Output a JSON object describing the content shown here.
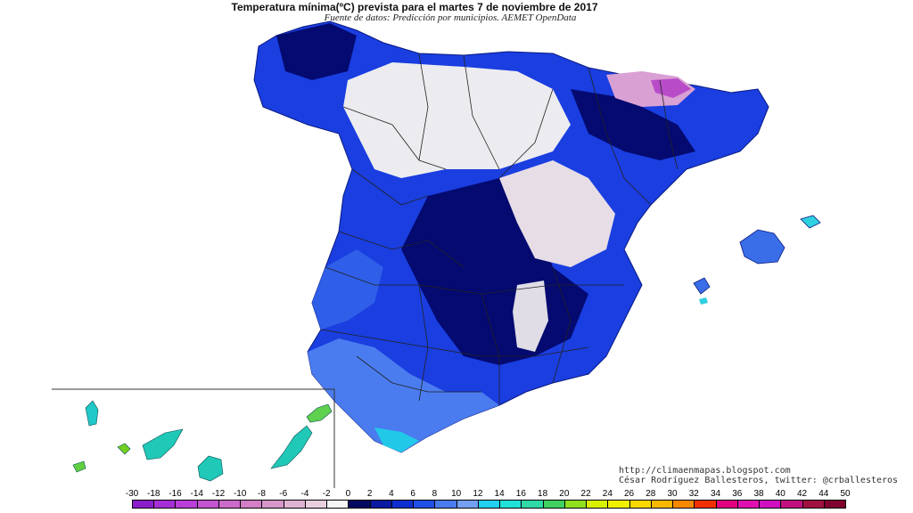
{
  "title": "Temperatura mínima(ºC) prevista para el martes 7 de noviembre de 2017",
  "subtitle": "Fuente de datos: Predicción por municipios. AEMET OpenData",
  "credits": {
    "url": "http://climaenmapas.blogspot.com",
    "author": "César Rodríguez Ballesteros, twitter: @crballesteros"
  },
  "legend": {
    "labels": [
      "-30",
      "-18",
      "-16",
      "-14",
      "-12",
      "-10",
      "-8",
      "-6",
      "-4",
      "-2",
      "0",
      "2",
      "4",
      "6",
      "8",
      "10",
      "12",
      "14",
      "16",
      "18",
      "20",
      "22",
      "24",
      "26",
      "28",
      "30",
      "32",
      "34",
      "36",
      "38",
      "40",
      "42",
      "44",
      "50"
    ],
    "colors": [
      "#8a1fc9",
      "#a52fd6",
      "#b93fd9",
      "#c455d2",
      "#cc6ac9",
      "#d27fc6",
      "#d897c9",
      "#dfb3d4",
      "#e8cfe0",
      "#f4f4f4",
      "#040a60",
      "#0a1aa0",
      "#0d2fd0",
      "#2050e8",
      "#4a7cf0",
      "#74a0f2",
      "#22d0f0",
      "#20e0d8",
      "#30d8a8",
      "#40d060",
      "#90e020",
      "#d8f000",
      "#f0f000",
      "#f8d800",
      "#f8b800",
      "#f88800",
      "#f03000",
      "#e00080",
      "#e010b0",
      "#d010c0",
      "#c01080",
      "#a01040",
      "#800030"
    ]
  }
}
